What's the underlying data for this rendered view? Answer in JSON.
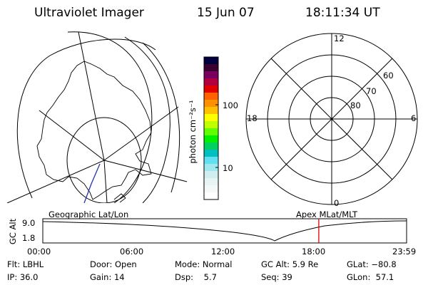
{
  "header": {
    "instrument": "Ultraviolet Imager",
    "date": "15 Jun 07",
    "time": "18:11:34 UT"
  },
  "colorbar": {
    "unit_label": "photon cm⁻²s⁻¹",
    "tick_labels": [
      "100",
      "10"
    ],
    "colors": [
      "#000040",
      "#3a0030",
      "#7a0060",
      "#b00040",
      "#e00000",
      "#ff6000",
      "#ff9000",
      "#ffc000",
      "#ffff00",
      "#c0ff00",
      "#60ff00",
      "#00f000",
      "#00d060",
      "#00c0c0",
      "#60e0f0",
      "#a0e8f0",
      "#d0eef0",
      "#e8f4f4",
      "#f4f8f8",
      "#ffffff"
    ]
  },
  "polar_plot": {
    "mlt_labels": {
      "top": "12",
      "left": "18",
      "right": "6",
      "bottom": "0"
    },
    "lat_labels": [
      "60",
      "70",
      "80"
    ]
  },
  "timeline": {
    "left_label": "Geographic Lat/Lon",
    "right_label": "Apex MLat/MLT",
    "axis_title": "GC Alt",
    "y_ticks": [
      "9.0",
      "1.8"
    ],
    "x_ticks": [
      "00:00",
      "06:00",
      "12:00",
      "18:00",
      "23:59"
    ],
    "marker_time": "18:11:34",
    "marker_color": "#e00000"
  },
  "info": {
    "filter_label": "Flt:",
    "filter_value": "LBHL",
    "ip_label": "IP:",
    "ip_value": "36.0",
    "door_label": "Door:",
    "door_value": "Open",
    "gain_label": "Gain:",
    "gain_value": "14",
    "mode_label": "Mode:",
    "mode_value": "Normal",
    "dsp_label": "Dsp:",
    "dsp_value": "5.7",
    "gcalt_label": "GC Alt:",
    "gcalt_value": "5.9 Re",
    "seq_label": "Seq:",
    "seq_value": "39",
    "glat_label": "GLat:",
    "glat_value": "−80.8",
    "glon_label": "GLon:",
    "glon_value": "57.1"
  }
}
